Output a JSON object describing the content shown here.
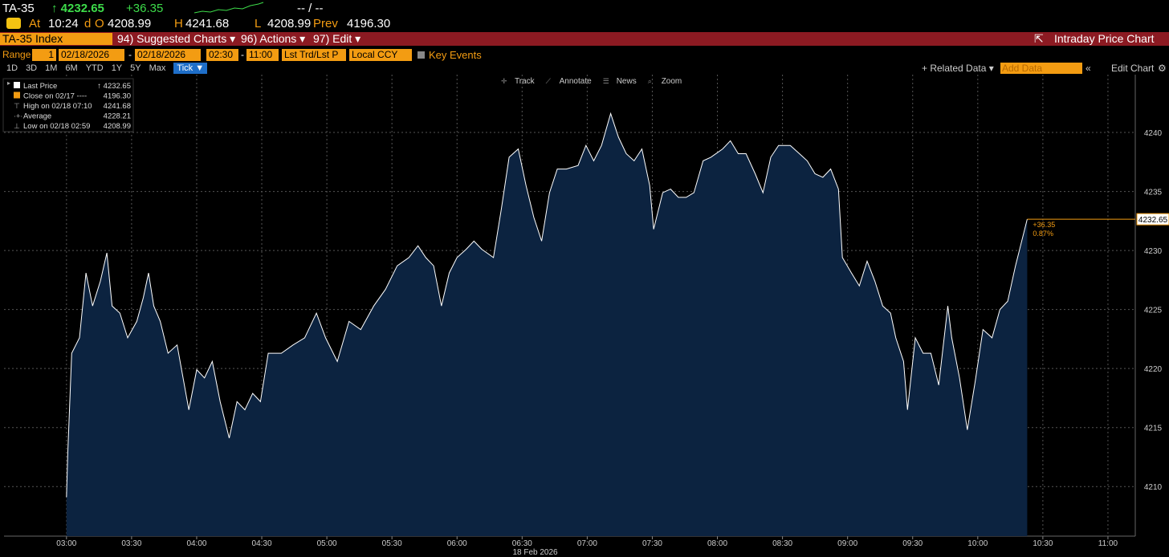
{
  "header": {
    "ticker": "TA-35",
    "last": "↑ 4232.65",
    "change": "+36.35",
    "day_range": "-- / --",
    "at_label": "At",
    "time": "10:24",
    "d_label": "d",
    "open_label": "O",
    "open": "4208.99",
    "high_label": "H",
    "high": "4241.68",
    "low_label": "L",
    "low": "4208.99",
    "prev_label": "Prev",
    "prev": "4196.30"
  },
  "menu": {
    "security": "TA-35 Index",
    "items": [
      "94) Suggested Charts ▾",
      "96) Actions ▾",
      "97) Edit ▾"
    ],
    "chart_name": "Intraday Price Chart"
  },
  "range_bar": {
    "label": "Range",
    "n": "1",
    "start": "02/18/2026",
    "end": "02/18/2026",
    "t_start": "02:30",
    "t_end": "11:00",
    "price_type": "Lst Trd/Lst P",
    "currency": "Local CCY",
    "key_events": "Key Events"
  },
  "periods": [
    "1D",
    "3D",
    "1M",
    "6M",
    "YTD",
    "1Y",
    "5Y",
    "Max",
    "Tick ▼"
  ],
  "right_tools": [
    "+ Related Data ▾",
    "Add Data",
    "Edit Chart"
  ],
  "chart_tools": [
    "Track",
    "Annotate",
    "News",
    "Zoom"
  ],
  "legend": [
    {
      "label": "Close on 02/17 ----",
      "value": "4196.30"
    },
    {
      "label": "High on 02/18 07:10",
      "value": "4241.68"
    },
    {
      "label": "Average",
      "value": "4228.21"
    },
    {
      "label": "Low on 02/18 02:59",
      "value": "4208.99"
    }
  ],
  "chart_data": {
    "type": "area",
    "x_label": "18 Feb 2026",
    "xlim": [
      2.52,
      11.21
    ],
    "xticks": [
      {
        "value": 3,
        "label": "03:00"
      },
      {
        "value": 3.5,
        "label": "03:30"
      },
      {
        "value": 4,
        "label": "04:00"
      },
      {
        "value": 4.5,
        "label": "04:30"
      },
      {
        "value": 5,
        "label": "05:00"
      },
      {
        "value": 5.5,
        "label": "05:30"
      },
      {
        "value": 6,
        "label": "06:00"
      },
      {
        "value": 6.5,
        "label": "06:30"
      },
      {
        "value": 7,
        "label": "07:00"
      },
      {
        "value": 7.5,
        "label": "07:30"
      },
      {
        "value": 8,
        "label": "08:00"
      },
      {
        "value": 8.5,
        "label": "08:30"
      },
      {
        "value": 9,
        "label": "09:00"
      },
      {
        "value": 9.5,
        "label": "09:30"
      },
      {
        "value": 10,
        "label": "10:00"
      },
      {
        "value": 10.5,
        "label": "10:30"
      },
      {
        "value": 11,
        "label": "11:00"
      }
    ],
    "ylim": [
      4205.8,
      4244.9
    ],
    "yticks": [
      4210,
      4215,
      4220,
      4225,
      4230,
      4235,
      4240
    ],
    "grid": true,
    "x": [
      3.0,
      3.01,
      3.04,
      3.1,
      3.15,
      3.2,
      3.26,
      3.31,
      3.35,
      3.41,
      3.47,
      3.54,
      3.59,
      3.63,
      3.67,
      3.72,
      3.78,
      3.85,
      3.94,
      4.0,
      4.06,
      4.12,
      4.18,
      4.25,
      4.31,
      4.37,
      4.43,
      4.49,
      4.55,
      4.65,
      4.74,
      4.83,
      4.92,
      4.99,
      5.08,
      5.17,
      5.26,
      5.36,
      5.45,
      5.54,
      5.63,
      5.7,
      5.76,
      5.82,
      5.88,
      5.94,
      6.0,
      6.07,
      6.13,
      6.19,
      6.28,
      6.34,
      6.4,
      6.47,
      6.53,
      6.59,
      6.65,
      6.71,
      6.77,
      6.84,
      6.93,
      6.99,
      7.05,
      7.11,
      7.18,
      7.24,
      7.3,
      7.36,
      7.42,
      7.48,
      7.51,
      7.58,
      7.64,
      7.7,
      7.76,
      7.82,
      7.89,
      7.95,
      8.04,
      8.1,
      8.16,
      8.22,
      8.29,
      8.35,
      8.41,
      8.47,
      8.56,
      8.63,
      8.69,
      8.75,
      8.81,
      8.87,
      8.93,
      8.96,
      9.03,
      9.09,
      9.15,
      9.21,
      9.27,
      9.33,
      9.37,
      9.43,
      9.46,
      9.52,
      9.58,
      9.64,
      9.7,
      9.77,
      9.8,
      9.86,
      9.92,
      9.98,
      10.04,
      10.11,
      10.17,
      10.23,
      10.29,
      10.38
    ],
    "series": [
      {
        "name": "Last Price",
        "color": "#ffffff",
        "fill": "#0c2340",
        "values": [
          4209.1,
          4212.8,
          4221.3,
          4222.6,
          4228.1,
          4225.3,
          4227.4,
          4229.8,
          4225.3,
          4224.7,
          4222.6,
          4224.0,
          4226.0,
          4228.1,
          4225.3,
          4224.0,
          4221.3,
          4222.0,
          4216.5,
          4219.9,
          4219.2,
          4220.6,
          4217.2,
          4214.1,
          4217.2,
          4216.5,
          4217.9,
          4217.2,
          4221.3,
          4221.3,
          4222.0,
          4222.6,
          4224.7,
          4222.6,
          4220.6,
          4224.0,
          4223.3,
          4225.3,
          4226.7,
          4228.7,
          4229.4,
          4230.4,
          4229.4,
          4228.7,
          4225.3,
          4228.1,
          4229.4,
          4230.1,
          4230.8,
          4230.1,
          4229.4,
          4233.5,
          4237.9,
          4238.6,
          4235.5,
          4232.8,
          4230.8,
          4234.9,
          4236.9,
          4236.9,
          4237.2,
          4238.9,
          4237.6,
          4238.9,
          4241.6,
          4239.6,
          4238.2,
          4237.6,
          4238.6,
          4235.5,
          4231.8,
          4234.9,
          4235.2,
          4234.5,
          4234.5,
          4234.9,
          4237.6,
          4237.9,
          4238.6,
          4239.3,
          4238.2,
          4238.2,
          4236.5,
          4234.9,
          4237.9,
          4238.9,
          4238.9,
          4238.2,
          4237.6,
          4236.5,
          4236.2,
          4236.9,
          4235.2,
          4229.4,
          4228.1,
          4227.0,
          4229.1,
          4227.4,
          4225.3,
          4224.7,
          4222.6,
          4220.6,
          4216.5,
          4222.6,
          4221.3,
          4221.3,
          4218.6,
          4225.3,
          4222.6,
          4219.2,
          4214.8,
          4218.9,
          4223.3,
          4222.6,
          4225.0,
          4225.7,
          4228.7,
          4232.65
        ]
      }
    ],
    "annotations": [
      "+36.35",
      "0.87%"
    ],
    "last_line_color": "#f39c12"
  }
}
